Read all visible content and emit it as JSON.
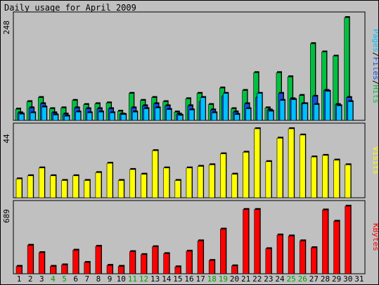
{
  "title": "Daily usage for April 2009",
  "colors": {
    "background": "#c0c0c0",
    "panel_border": "#000000",
    "hits": "#00c040",
    "files": "#1050e0",
    "pages": "#00c0ff",
    "visits": "#ffff00",
    "kbytes": "#ff0000",
    "weekend_label": "#00a000",
    "weekday_label": "#000000"
  },
  "chart_data": [
    {
      "type": "bar",
      "panel": "pages-files-hits",
      "ylabel_parts": [
        "Pages",
        "/",
        "Files",
        "/",
        "Hits"
      ],
      "ytick_max": "248",
      "ylim": [
        0,
        248
      ],
      "categories": [
        "1",
        "2",
        "3",
        "4",
        "5",
        "6",
        "7",
        "8",
        "9",
        "10",
        "11",
        "12",
        "13",
        "14",
        "15",
        "16",
        "17",
        "18",
        "19",
        "20",
        "21",
        "22",
        "23",
        "24",
        "25",
        "26",
        "27",
        "28",
        "29",
        "30",
        "31"
      ],
      "weekend_days": [
        "4",
        "5",
        "11",
        "12",
        "18",
        "19",
        "25",
        "26"
      ],
      "series": [
        {
          "name": "Hits",
          "values": [
            27,
            45,
            55,
            28,
            30,
            48,
            38,
            40,
            42,
            22,
            65,
            48,
            55,
            45,
            20,
            52,
            65,
            38,
            78,
            28,
            72,
            115,
            30,
            115,
            105,
            60,
            185,
            165,
            155,
            248,
            null
          ]
        },
        {
          "name": "Files",
          "values": [
            18,
            30,
            40,
            18,
            15,
            30,
            28,
            28,
            28,
            15,
            30,
            35,
            40,
            35,
            15,
            35,
            45,
            25,
            58,
            20,
            40,
            55,
            25,
            65,
            52,
            40,
            58,
            72,
            38,
            55,
            null
          ]
        },
        {
          "name": "Pages",
          "values": [
            15,
            18,
            32,
            13,
            10,
            20,
            18,
            20,
            18,
            14,
            20,
            28,
            30,
            26,
            12,
            25,
            55,
            18,
            65,
            14,
            28,
            65,
            22,
            48,
            50,
            40,
            38,
            70,
            35,
            45,
            null
          ]
        }
      ]
    },
    {
      "type": "bar",
      "panel": "visits",
      "ylabel": "Visits",
      "ytick_max": "44",
      "ylim": [
        0,
        44
      ],
      "categories": [
        "1",
        "2",
        "3",
        "4",
        "5",
        "6",
        "7",
        "8",
        "9",
        "10",
        "11",
        "12",
        "13",
        "14",
        "15",
        "16",
        "17",
        "18",
        "19",
        "20",
        "21",
        "22",
        "23",
        "24",
        "25",
        "26",
        "27",
        "28",
        "29",
        "30",
        "31"
      ],
      "series": [
        {
          "name": "Visits",
          "values": [
            12,
            14,
            19,
            14,
            11,
            14,
            11,
            16,
            22,
            11,
            18,
            15,
            30,
            19,
            11,
            19,
            20,
            21,
            28,
            15,
            29,
            44,
            23,
            38,
            44,
            40,
            26,
            27,
            24,
            21,
            null
          ]
        }
      ]
    },
    {
      "type": "bar",
      "panel": "kbytes",
      "ylabel": "KBytes",
      "ytick_max": "689",
      "ylim": [
        0,
        689
      ],
      "categories": [
        "1",
        "2",
        "3",
        "4",
        "5",
        "6",
        "7",
        "8",
        "9",
        "10",
        "11",
        "12",
        "13",
        "14",
        "15",
        "16",
        "17",
        "18",
        "19",
        "20",
        "21",
        "22",
        "23",
        "24",
        "25",
        "26",
        "27",
        "28",
        "29",
        "30",
        "31"
      ],
      "series": [
        {
          "name": "KBytes",
          "values": [
            75,
            290,
            215,
            75,
            90,
            240,
            115,
            280,
            85,
            75,
            225,
            195,
            275,
            205,
            70,
            230,
            335,
            135,
            455,
            80,
            655,
            655,
            255,
            395,
            385,
            335,
            265,
            650,
            535,
            689,
            null
          ]
        }
      ]
    }
  ]
}
